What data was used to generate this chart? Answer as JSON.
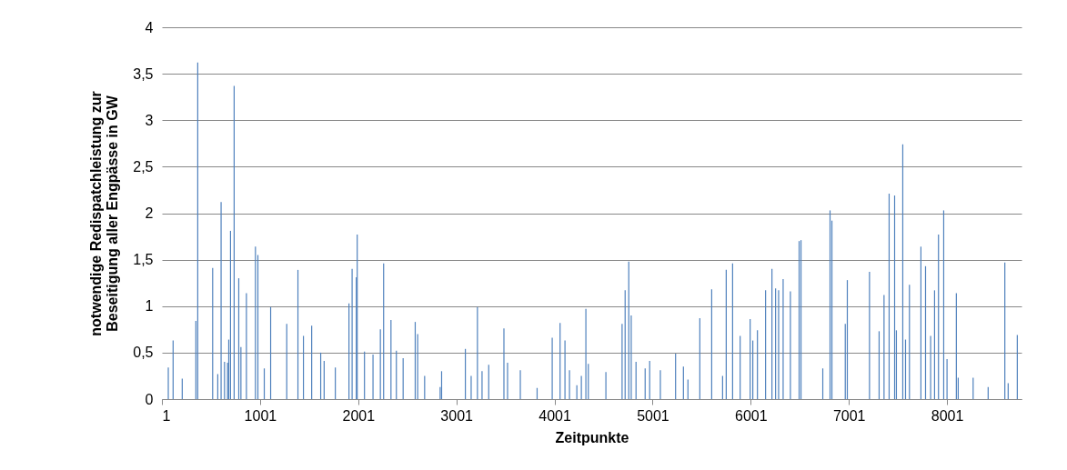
{
  "chart_data": {
    "type": "bar",
    "xlabel": "Zeitpunkte",
    "ylabel": "notwendige Redispatchleistung zur\nBeseitigung aller Engpässe in GW",
    "x": [
      66,
      115,
      208,
      347,
      366,
      518,
      570,
      604,
      639,
      670,
      682,
      700,
      737,
      784,
      806,
      862,
      954,
      979,
      1044,
      1109,
      1273,
      1387,
      1443,
      1527,
      1619,
      1654,
      1768,
      1907,
      1939,
      1982,
      1991,
      2065,
      2152,
      2227,
      2260,
      2335,
      2390,
      2459,
      2582,
      2607,
      2678,
      2836,
      2851,
      3093,
      3152,
      3216,
      3263,
      3331,
      3486,
      3523,
      3653,
      3824,
      3978,
      4058,
      4108,
      4154,
      4229,
      4275,
      4321,
      4346,
      4525,
      4690,
      4721,
      4758,
      4783,
      4832,
      4925,
      4971,
      5080,
      5235,
      5315,
      5361,
      5482,
      5603,
      5714,
      5751,
      5816,
      5893,
      5995,
      6022,
      6069,
      6152,
      6217,
      6254,
      6285,
      6331,
      6405,
      6494,
      6513,
      6735,
      6809,
      6828,
      6964,
      6985,
      7211,
      7309,
      7359,
      7411,
      7467,
      7485,
      7550,
      7578,
      7618,
      7735,
      7782,
      7834,
      7874,
      7914,
      7967,
      8001,
      8096,
      8115,
      8267,
      8420,
      8590,
      8624,
      8717
    ],
    "values": [
      0.34,
      0.63,
      0.22,
      0.84,
      3.62,
      1.41,
      0.27,
      2.12,
      0.4,
      0.39,
      0.64,
      1.81,
      3.37,
      1.3,
      0.56,
      1.14,
      1.64,
      1.55,
      0.33,
      0.99,
      0.81,
      1.39,
      0.68,
      0.79,
      0.5,
      0.41,
      0.34,
      1.03,
      1.4,
      1.31,
      1.77,
      0.51,
      0.48,
      0.75,
      1.46,
      0.85,
      0.52,
      0.44,
      0.83,
      0.7,
      0.25,
      0.13,
      0.3,
      0.54,
      0.25,
      0.99,
      0.3,
      0.37,
      0.76,
      0.39,
      0.31,
      0.12,
      0.66,
      0.82,
      0.63,
      0.31,
      0.15,
      0.25,
      0.97,
      0.38,
      0.29,
      0.81,
      1.17,
      1.48,
      0.9,
      0.4,
      0.33,
      0.41,
      0.31,
      0.49,
      0.35,
      0.21,
      0.87,
      1.18,
      0.25,
      1.39,
      1.46,
      0.68,
      0.86,
      0.63,
      0.74,
      1.17,
      1.4,
      1.19,
      1.17,
      1.29,
      1.16,
      1.7,
      1.71,
      0.33,
      2.03,
      1.92,
      0.81,
      1.28,
      1.37,
      0.73,
      1.12,
      2.21,
      2.19,
      0.74,
      2.74,
      0.64,
      1.23,
      1.64,
      1.43,
      0.68,
      1.17,
      1.77,
      2.03,
      0.43,
      1.14,
      0.23,
      0.23,
      0.13,
      1.47,
      0.17,
      0.69
    ],
    "color": "#4f81bd",
    "xlim": [
      1,
      8760
    ],
    "xticks": [
      1,
      1001,
      2001,
      3001,
      4001,
      5001,
      6001,
      7001,
      8001
    ],
    "ylim": [
      0,
      4
    ],
    "yticks": [
      0,
      {
        "value": 0.5,
        "label": "0,5"
      },
      1,
      {
        "value": 1.5,
        "label": "1,5"
      },
      2,
      {
        "value": 2.5,
        "label": "2,5"
      },
      3,
      {
        "value": 3.5,
        "label": "3,5"
      },
      4
    ],
    "grid": "y"
  }
}
